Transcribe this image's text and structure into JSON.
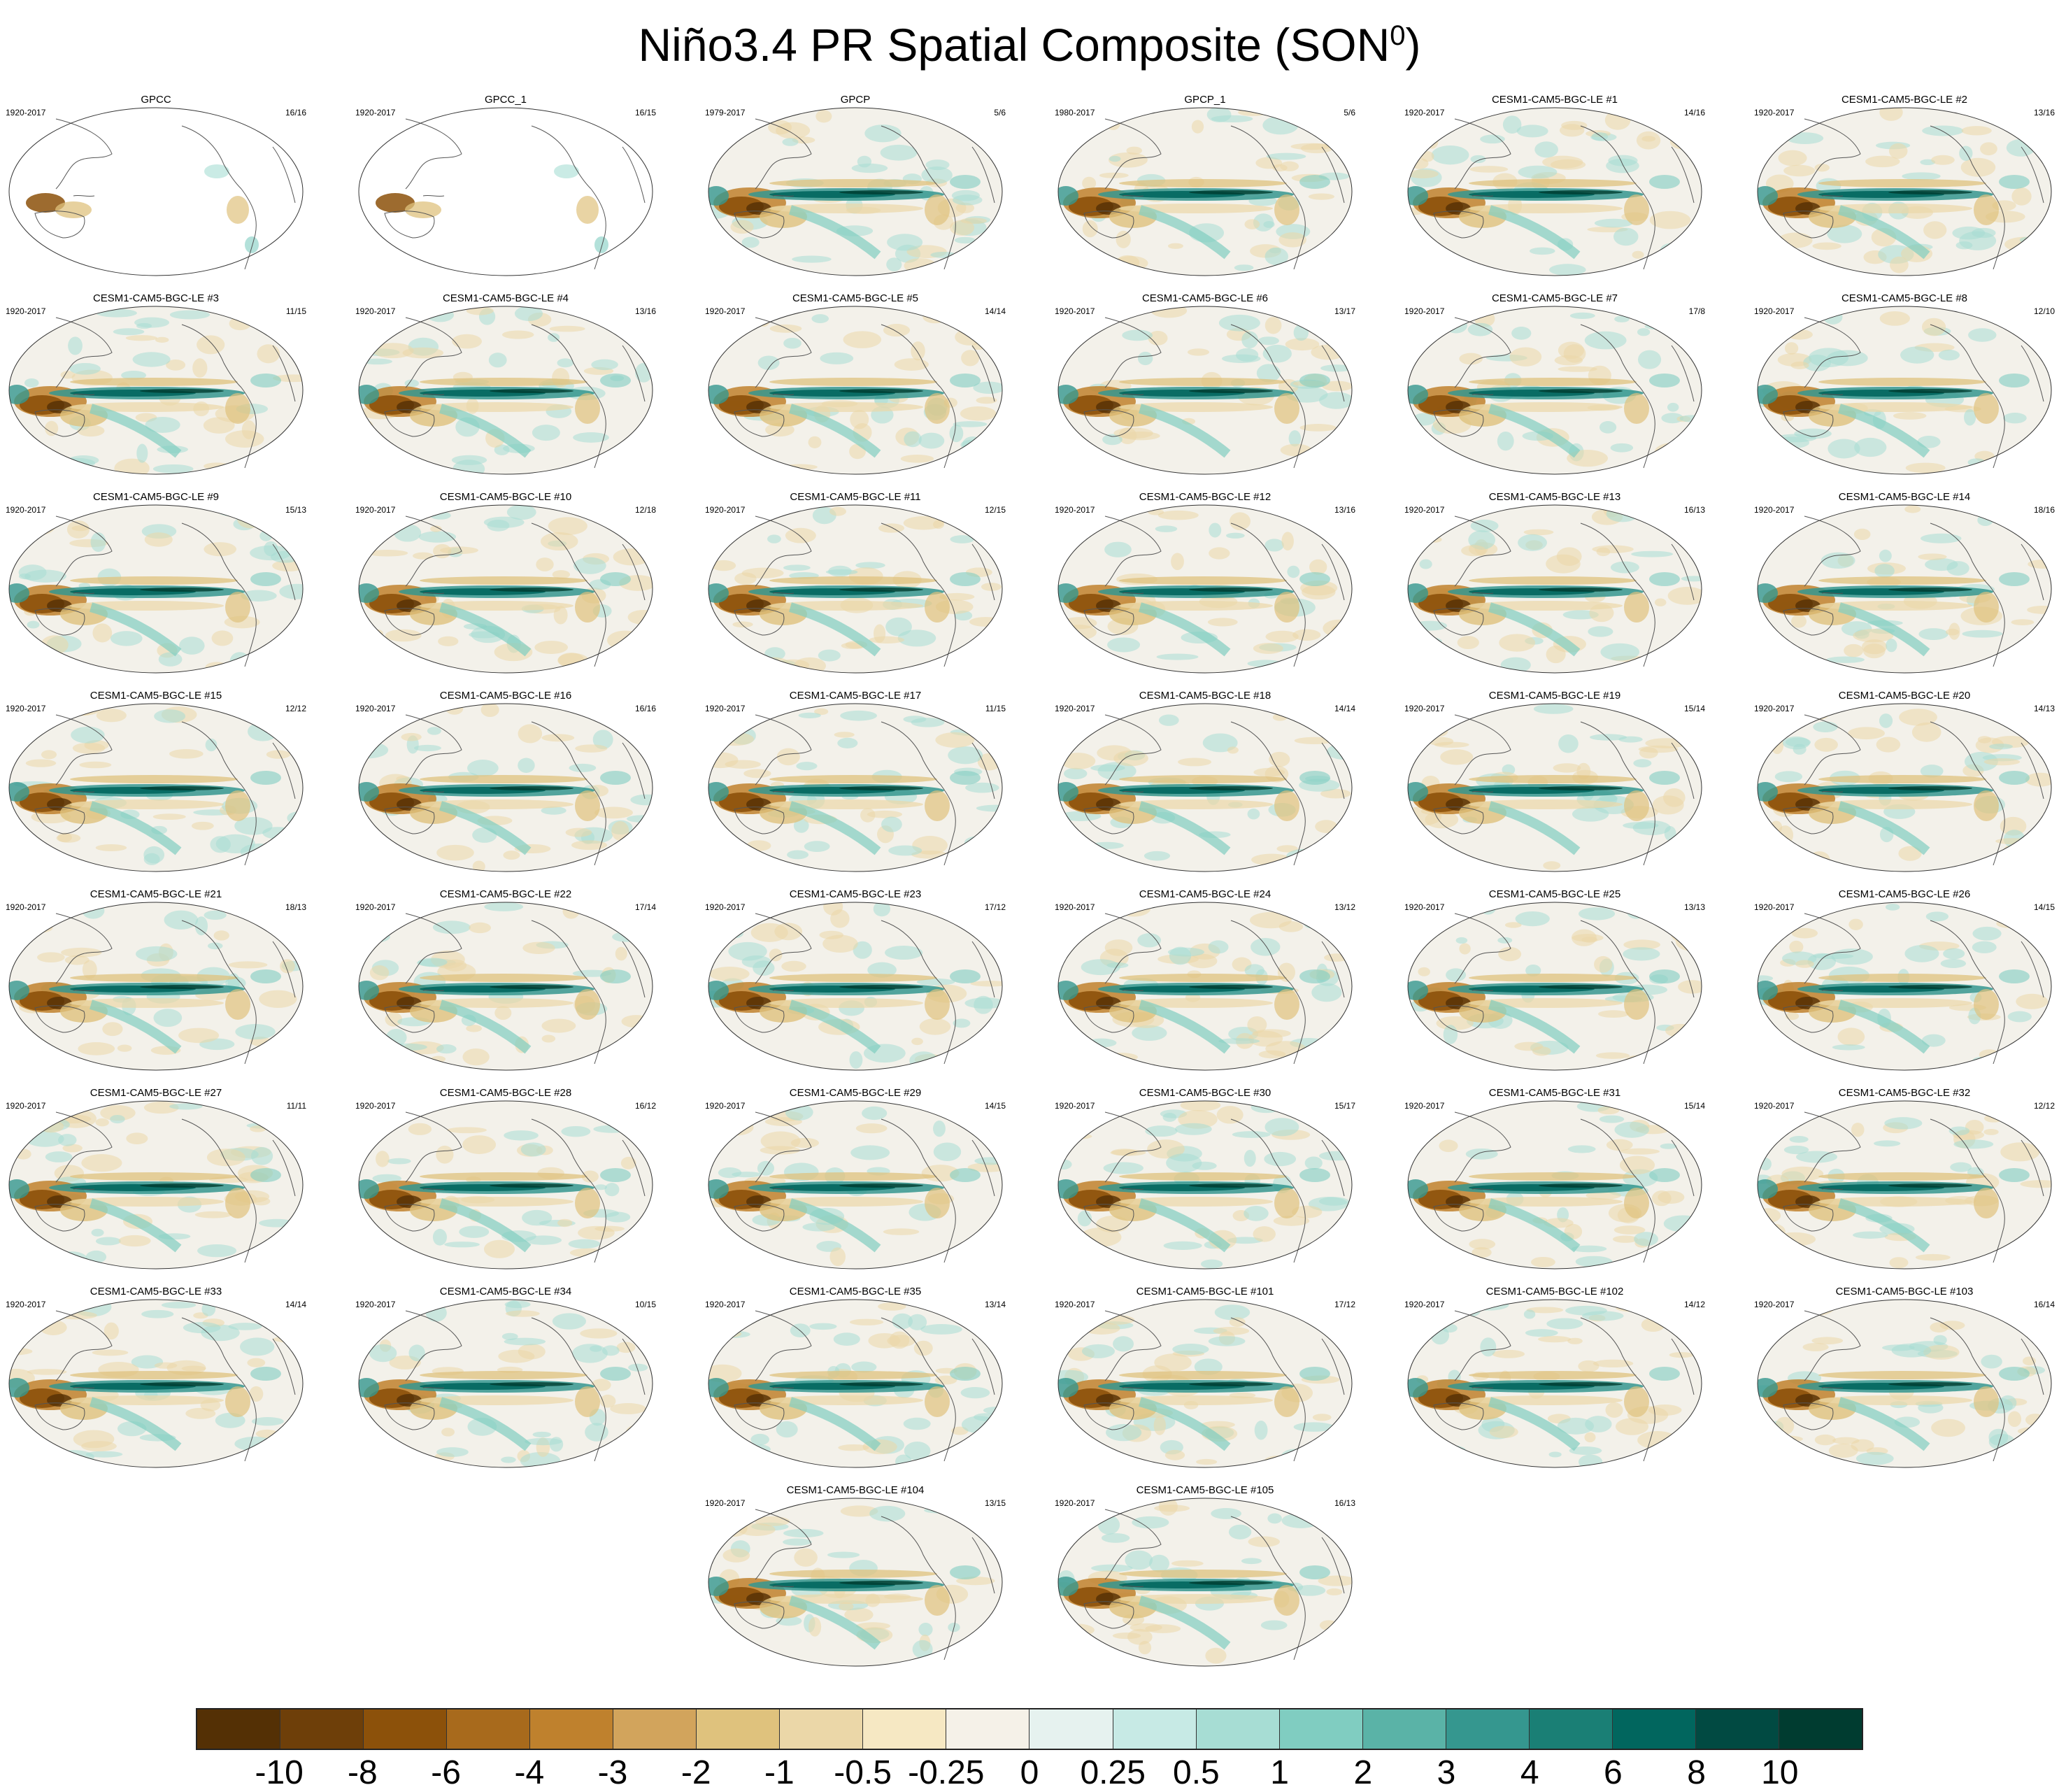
{
  "figure": {
    "title_main": "Niño3.4 PR Spatial Composite (SON",
    "title_sup": "0",
    "title_end": ")"
  },
  "panels": [
    {
      "title": "GPCC",
      "years": "1920-2017",
      "count": "16/16",
      "land_only": true
    },
    {
      "title": "GPCC_1",
      "years": "1920-2017",
      "count": "16/15",
      "land_only": true
    },
    {
      "title": "GPCP",
      "years": "1979-2017",
      "count": "5/6"
    },
    {
      "title": "GPCP_1",
      "years": "1980-2017",
      "count": "5/6"
    },
    {
      "title": "CESM1-CAM5-BGC-LE #1",
      "years": "1920-2017",
      "count": "14/16"
    },
    {
      "title": "CESM1-CAM5-BGC-LE #2",
      "years": "1920-2017",
      "count": "13/16"
    },
    {
      "title": "CESM1-CAM5-BGC-LE #3",
      "years": "1920-2017",
      "count": "11/15"
    },
    {
      "title": "CESM1-CAM5-BGC-LE #4",
      "years": "1920-2017",
      "count": "13/16"
    },
    {
      "title": "CESM1-CAM5-BGC-LE #5",
      "years": "1920-2017",
      "count": "14/14"
    },
    {
      "title": "CESM1-CAM5-BGC-LE #6",
      "years": "1920-2017",
      "count": "13/17"
    },
    {
      "title": "CESM1-CAM5-BGC-LE #7",
      "years": "1920-2017",
      "count": "17/8"
    },
    {
      "title": "CESM1-CAM5-BGC-LE #8",
      "years": "1920-2017",
      "count": "12/10"
    },
    {
      "title": "CESM1-CAM5-BGC-LE #9",
      "years": "1920-2017",
      "count": "15/13"
    },
    {
      "title": "CESM1-CAM5-BGC-LE #10",
      "years": "1920-2017",
      "count": "12/18"
    },
    {
      "title": "CESM1-CAM5-BGC-LE #11",
      "years": "1920-2017",
      "count": "12/15"
    },
    {
      "title": "CESM1-CAM5-BGC-LE #12",
      "years": "1920-2017",
      "count": "13/16"
    },
    {
      "title": "CESM1-CAM5-BGC-LE #13",
      "years": "1920-2017",
      "count": "16/13"
    },
    {
      "title": "CESM1-CAM5-BGC-LE #14",
      "years": "1920-2017",
      "count": "18/16"
    },
    {
      "title": "CESM1-CAM5-BGC-LE #15",
      "years": "1920-2017",
      "count": "12/12"
    },
    {
      "title": "CESM1-CAM5-BGC-LE #16",
      "years": "1920-2017",
      "count": "16/16"
    },
    {
      "title": "CESM1-CAM5-BGC-LE #17",
      "years": "1920-2017",
      "count": "11/15"
    },
    {
      "title": "CESM1-CAM5-BGC-LE #18",
      "years": "1920-2017",
      "count": "14/14"
    },
    {
      "title": "CESM1-CAM5-BGC-LE #19",
      "years": "1920-2017",
      "count": "15/14"
    },
    {
      "title": "CESM1-CAM5-BGC-LE #20",
      "years": "1920-2017",
      "count": "14/13"
    },
    {
      "title": "CESM1-CAM5-BGC-LE #21",
      "years": "1920-2017",
      "count": "18/13"
    },
    {
      "title": "CESM1-CAM5-BGC-LE #22",
      "years": "1920-2017",
      "count": "17/14"
    },
    {
      "title": "CESM1-CAM5-BGC-LE #23",
      "years": "1920-2017",
      "count": "17/12"
    },
    {
      "title": "CESM1-CAM5-BGC-LE #24",
      "years": "1920-2017",
      "count": "13/12"
    },
    {
      "title": "CESM1-CAM5-BGC-LE #25",
      "years": "1920-2017",
      "count": "13/13"
    },
    {
      "title": "CESM1-CAM5-BGC-LE #26",
      "years": "1920-2017",
      "count": "14/15"
    },
    {
      "title": "CESM1-CAM5-BGC-LE #27",
      "years": "1920-2017",
      "count": "11/11"
    },
    {
      "title": "CESM1-CAM5-BGC-LE #28",
      "years": "1920-2017",
      "count": "16/12"
    },
    {
      "title": "CESM1-CAM5-BGC-LE #29",
      "years": "1920-2017",
      "count": "14/15"
    },
    {
      "title": "CESM1-CAM5-BGC-LE #30",
      "years": "1920-2017",
      "count": "15/17"
    },
    {
      "title": "CESM1-CAM5-BGC-LE #31",
      "years": "1920-2017",
      "count": "15/14"
    },
    {
      "title": "CESM1-CAM5-BGC-LE #32",
      "years": "1920-2017",
      "count": "12/12"
    },
    {
      "title": "CESM1-CAM5-BGC-LE #33",
      "years": "1920-2017",
      "count": "14/14"
    },
    {
      "title": "CESM1-CAM5-BGC-LE #34",
      "years": "1920-2017",
      "count": "10/15"
    },
    {
      "title": "CESM1-CAM5-BGC-LE #35",
      "years": "1920-2017",
      "count": "13/14"
    },
    {
      "title": "CESM1-CAM5-BGC-LE #101",
      "years": "1920-2017",
      "count": "17/12"
    },
    {
      "title": "CESM1-CAM5-BGC-LE #102",
      "years": "1920-2017",
      "count": "14/12"
    },
    {
      "title": "CESM1-CAM5-BGC-LE #103",
      "years": "1920-2017",
      "count": "16/14"
    },
    {
      "title": "CESM1-CAM5-BGC-LE #104",
      "years": "1920-2017",
      "count": "13/15"
    },
    {
      "title": "CESM1-CAM5-BGC-LE #105",
      "years": "1920-2017",
      "count": "16/13"
    }
  ],
  "colorbar": {
    "labels": [
      "-10",
      "-8",
      "-6",
      "-4",
      "-3",
      "-2",
      "-1",
      "-0.5",
      "-0.25",
      "0",
      "0.25",
      "0.5",
      "1",
      "2",
      "3",
      "4",
      "6",
      "8",
      "10"
    ],
    "colors": [
      "#543005",
      "#6e3f09",
      "#8c510a",
      "#a86a1c",
      "#bf812d",
      "#d2a45c",
      "#dfc27d",
      "#ebd7a8",
      "#f6e8c3",
      "#f5f1e8",
      "#e6f2ef",
      "#c7eae5",
      "#a7ddd4",
      "#80cdc1",
      "#5ab3a7",
      "#35978f",
      "#1a7f75",
      "#01665e",
      "#014a42",
      "#003c30"
    ]
  }
}
